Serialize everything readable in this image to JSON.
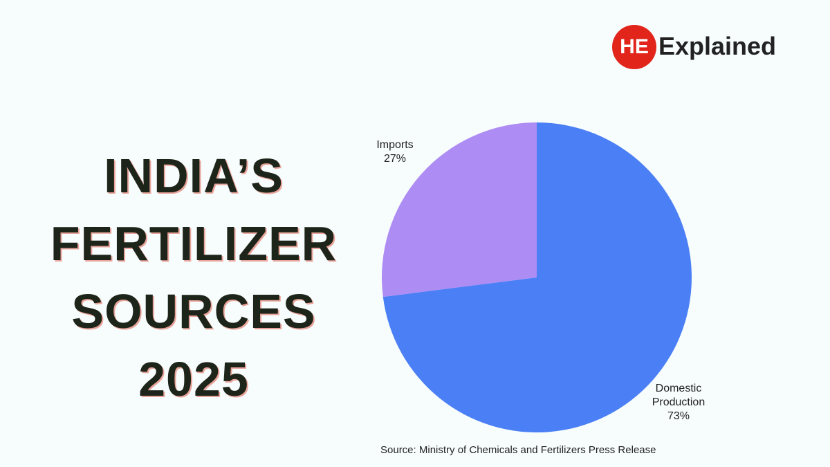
{
  "logo": {
    "mark": "HE",
    "text": "Explained"
  },
  "chart_data": {
    "type": "pie",
    "title": "INDIA’S FERTILIZER SOURCES 2025",
    "categories": [
      "Domestic Production",
      "Imports"
    ],
    "values": [
      73,
      27
    ],
    "value_labels": [
      "73%",
      "27%"
    ],
    "colors": [
      "#4a7ff5",
      "#ad8cf3"
    ],
    "source": "Source: Ministry of Chemicals and Fertilizers Press Release"
  }
}
